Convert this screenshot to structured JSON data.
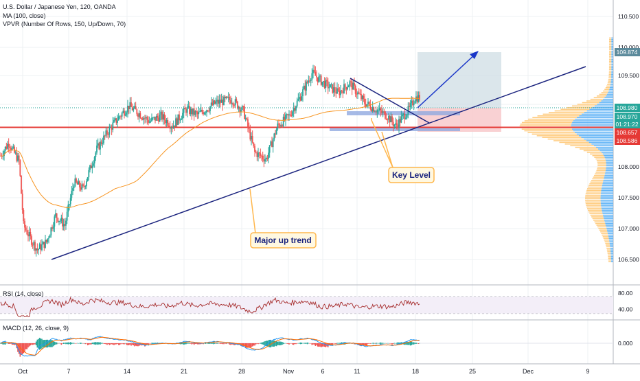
{
  "header": {
    "symbol_line": "U.S. Dollar / Japanese Yen, 120, OANDA",
    "ma_line": "MA (100, close)",
    "vpvr_line": "VPVR (Number Of Rows, 150, Up/Down, 70)"
  },
  "chart_data": {
    "type": "candlestick",
    "price_axis": {
      "ticks": [
        "110.500",
        "110.000",
        "109.500",
        "108.000",
        "107.500",
        "107.000",
        "106.500"
      ],
      "ylim": [
        106.35,
        110.72
      ]
    },
    "time_axis": {
      "ticks": [
        "Oct",
        "7",
        "14",
        "21",
        "28",
        "Nov",
        "6",
        "11",
        "18",
        "25",
        "Dec",
        "9"
      ]
    },
    "price_tags": [
      {
        "label": "109.874",
        "kind": "target"
      },
      {
        "label": "108.980",
        "kind": "last"
      },
      {
        "label": "108.970",
        "kind": "ma"
      },
      {
        "label": "01:21:22",
        "kind": "countdown"
      },
      {
        "label": "108.657",
        "kind": "level"
      },
      {
        "label": "108.586",
        "kind": "stop"
      }
    ],
    "annotations": {
      "key_level": "Key Level",
      "major_trend": "Major up trend"
    },
    "rsi": {
      "label": "RSI (14, close)",
      "ticks": [
        "80.00",
        "40.00"
      ]
    },
    "macd": {
      "label": "MACD (12, 26, close, 9)",
      "ticks": [
        "0.000"
      ]
    },
    "colors": {
      "up": "#26a69a",
      "down": "#ef5350",
      "ma": "#f7931e",
      "trendline": "#1a237e",
      "level_line": "#e53935",
      "rsi_line": "#a52a2a",
      "macd_line": "#2196f3",
      "signal_line": "#ff6d00",
      "vpvr_up": "#64b5f6",
      "vpvr_down": "#ffcc80"
    }
  }
}
